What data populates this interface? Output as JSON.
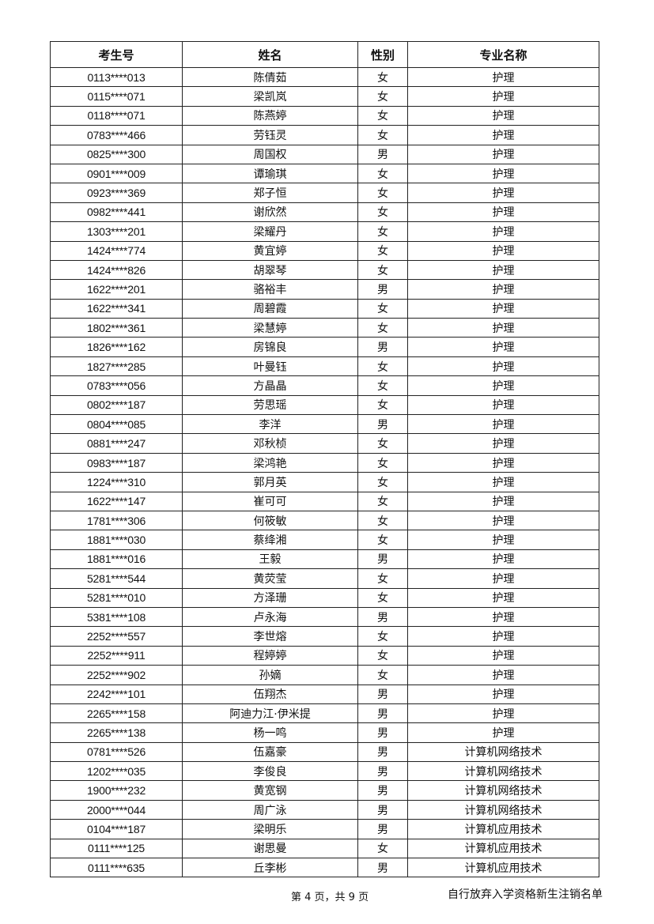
{
  "table": {
    "headers": [
      "考生号",
      "姓名",
      "性别",
      "专业名称"
    ],
    "rows": [
      [
        "0113****013",
        "陈倩茹",
        "女",
        "护理"
      ],
      [
        "0115****071",
        "梁凯岚",
        "女",
        "护理"
      ],
      [
        "0118****071",
        "陈燕婷",
        "女",
        "护理"
      ],
      [
        "0783****466",
        "劳钰灵",
        "女",
        "护理"
      ],
      [
        "0825****300",
        "周国权",
        "男",
        "护理"
      ],
      [
        "0901****009",
        "谭瑜琪",
        "女",
        "护理"
      ],
      [
        "0923****369",
        "郑子恒",
        "女",
        "护理"
      ],
      [
        "0982****441",
        "谢欣然",
        "女",
        "护理"
      ],
      [
        "1303****201",
        "梁耀丹",
        "女",
        "护理"
      ],
      [
        "1424****774",
        "黄宜婷",
        "女",
        "护理"
      ],
      [
        "1424****826",
        "胡翠琴",
        "女",
        "护理"
      ],
      [
        "1622****201",
        "骆裕丰",
        "男",
        "护理"
      ],
      [
        "1622****341",
        "周碧霞",
        "女",
        "护理"
      ],
      [
        "1802****361",
        "梁慧婷",
        "女",
        "护理"
      ],
      [
        "1826****162",
        "房锦良",
        "男",
        "护理"
      ],
      [
        "1827****285",
        "叶曼钰",
        "女",
        "护理"
      ],
      [
        "0783****056",
        "方晶晶",
        "女",
        "护理"
      ],
      [
        "0802****187",
        "劳思瑶",
        "女",
        "护理"
      ],
      [
        "0804****085",
        "李洋",
        "男",
        "护理"
      ],
      [
        "0881****247",
        "邓秋桢",
        "女",
        "护理"
      ],
      [
        "0983****187",
        "梁鸿艳",
        "女",
        "护理"
      ],
      [
        "1224****310",
        "郭月英",
        "女",
        "护理"
      ],
      [
        "1622****147",
        "崔可可",
        "女",
        "护理"
      ],
      [
        "1781****306",
        "何筱敏",
        "女",
        "护理"
      ],
      [
        "1881****030",
        "蔡绛湘",
        "女",
        "护理"
      ],
      [
        "1881****016",
        "王毅",
        "男",
        "护理"
      ],
      [
        "5281****544",
        "黄荧莹",
        "女",
        "护理"
      ],
      [
        "5281****010",
        "方泽珊",
        "女",
        "护理"
      ],
      [
        "5381****108",
        "卢永海",
        "男",
        "护理"
      ],
      [
        "2252****557",
        "李世熔",
        "女",
        "护理"
      ],
      [
        "2252****911",
        "程婷婷",
        "女",
        "护理"
      ],
      [
        "2252****902",
        "孙嫡",
        "女",
        "护理"
      ],
      [
        "2242****101",
        "伍翔杰",
        "男",
        "护理"
      ],
      [
        "2265****158",
        "阿迪力江·伊米提",
        "男",
        "护理"
      ],
      [
        "2265****138",
        "杨一鸣",
        "男",
        "护理"
      ],
      [
        "0781****526",
        "伍嘉豪",
        "男",
        "计算机网络技术"
      ],
      [
        "1202****035",
        "李俊良",
        "男",
        "计算机网络技术"
      ],
      [
        "1900****232",
        "黄宽钢",
        "男",
        "计算机网络技术"
      ],
      [
        "2000****044",
        "周广泳",
        "男",
        "计算机网络技术"
      ],
      [
        "0104****187",
        "梁明乐",
        "男",
        "计算机应用技术"
      ],
      [
        "0111****125",
        "谢思曼",
        "女",
        "计算机应用技术"
      ],
      [
        "0111****635",
        "丘李彬",
        "男",
        "计算机应用技术"
      ]
    ]
  },
  "footer": {
    "page": "第 4 页，共 9 页",
    "title": "自行放弃入学资格新生注销名单"
  }
}
